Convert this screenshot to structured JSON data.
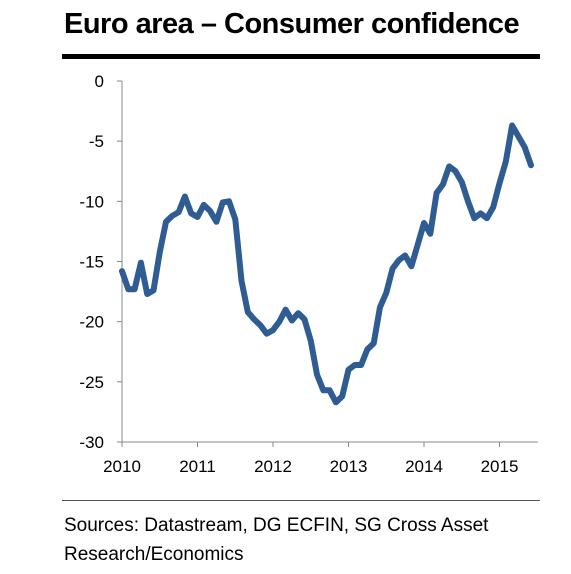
{
  "title": "Euro area – Consumer confidence",
  "source": "Sources: Datastream, DG ECFIN, SG Cross Asset Research/Economics",
  "chart_data": {
    "type": "line",
    "title": "Euro area – Consumer confidence",
    "xlabel": "",
    "ylabel": "",
    "x_ticks": [
      "2010",
      "2011",
      "2012",
      "2013",
      "2014",
      "2015"
    ],
    "y_ticks": [
      0,
      -5,
      -10,
      -15,
      -20,
      -25,
      -30
    ],
    "ylim": [
      -30,
      0
    ],
    "xlim": [
      "2010-01",
      "2015-06"
    ],
    "grid": false,
    "legend": "none",
    "color": "#2F5C93",
    "series": [
      {
        "x": [
          "2010-01",
          "2010-02",
          "2010-03",
          "2010-04",
          "2010-05",
          "2010-06",
          "2010-07",
          "2010-08",
          "2010-09",
          "2010-10",
          "2010-11",
          "2010-12",
          "2011-01",
          "2011-02",
          "2011-03",
          "2011-04",
          "2011-05",
          "2011-06",
          "2011-07",
          "2011-08",
          "2011-09",
          "2011-10",
          "2011-11",
          "2011-12",
          "2012-01",
          "2012-02",
          "2012-03",
          "2012-04",
          "2012-05",
          "2012-06",
          "2012-07",
          "2012-08",
          "2012-09",
          "2012-10",
          "2012-11",
          "2012-12",
          "2013-01",
          "2013-02",
          "2013-03",
          "2013-04",
          "2013-05",
          "2013-06",
          "2013-07",
          "2013-08",
          "2013-09",
          "2013-10",
          "2013-11",
          "2013-12",
          "2014-01",
          "2014-02",
          "2014-03",
          "2014-04",
          "2014-05",
          "2014-06",
          "2014-07",
          "2014-08",
          "2014-09",
          "2014-10",
          "2014-11",
          "2014-12",
          "2015-01",
          "2015-02",
          "2015-03",
          "2015-04",
          "2015-05",
          "2015-06"
        ],
        "values": [
          -15.8,
          -17.3,
          -17.3,
          -15.1,
          -17.7,
          -17.4,
          -14.2,
          -11.7,
          -11.2,
          -10.9,
          -9.6,
          -11.0,
          -11.3,
          -10.3,
          -10.8,
          -11.7,
          -10.1,
          -10.0,
          -11.5,
          -16.6,
          -19.2,
          -19.8,
          -20.3,
          -21.0,
          -20.7,
          -20.0,
          -19.0,
          -19.9,
          -19.3,
          -19.8,
          -21.6,
          -24.4,
          -25.7,
          -25.7,
          -26.7,
          -26.2,
          -24.0,
          -23.6,
          -23.6,
          -22.3,
          -21.8,
          -18.8,
          -17.6,
          -15.6,
          -14.9,
          -14.5,
          -15.4,
          -13.6,
          -11.8,
          -12.7,
          -9.3,
          -8.6,
          -7.1,
          -7.5,
          -8.4,
          -10.0,
          -11.4,
          -11.0,
          -11.4,
          -10.5,
          -8.5,
          -6.7,
          -3.7,
          -4.6,
          -5.5,
          -7.0
        ]
      }
    ]
  }
}
